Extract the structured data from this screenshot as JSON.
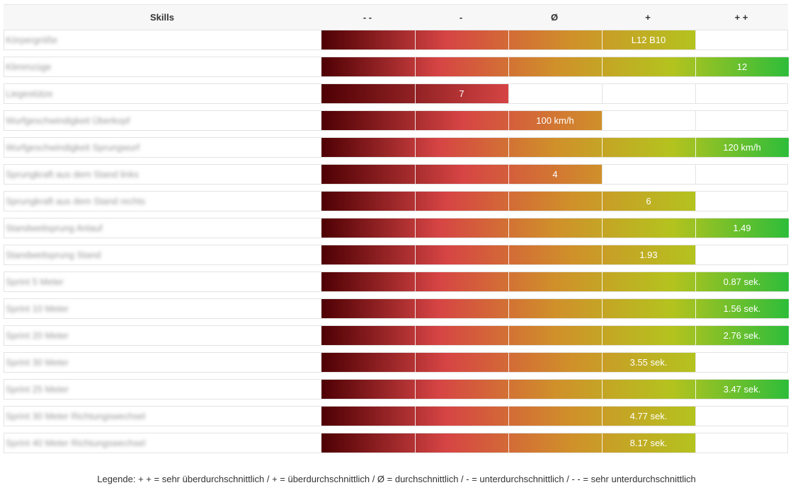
{
  "chart_data": {
    "type": "table",
    "header": {
      "skills": "Skills",
      "levels": [
        "- -",
        "-",
        "Ø",
        "+",
        "+ +"
      ]
    },
    "colors": {
      "level_1": "#4e0004",
      "level_2": "#d64444",
      "level_3": "#d0902a",
      "level_4": "#b4c31e",
      "level_5": "#2ebd3a"
    },
    "rows": [
      {
        "label": "Körpergröße",
        "level": 4,
        "value": "L12 B10"
      },
      {
        "label": "Klimmzüge",
        "level": 5,
        "value": "12"
      },
      {
        "label": "Liegestütze",
        "level": 2,
        "value": "7"
      },
      {
        "label": "Wurfgeschwindigkeit Überkopf",
        "level": 3,
        "value": "100 km/h"
      },
      {
        "label": "Wurfgeschwindigkeit Sprungwurf",
        "level": 5,
        "value": "120 km/h"
      },
      {
        "label": "Sprungkraft aus dem Stand links",
        "level": 3,
        "value": "4"
      },
      {
        "label": "Sprungkraft aus dem Stand rechts",
        "level": 4,
        "value": "6"
      },
      {
        "label": "Standweitsprung Anlauf",
        "level": 5,
        "value": "1.49"
      },
      {
        "label": "Standweitsprung Stand",
        "level": 4,
        "value": "1.93"
      },
      {
        "label": "Sprint 5 Meter",
        "level": 5,
        "value": "0.87 sek."
      },
      {
        "label": "Sprint 10 Meter",
        "level": 5,
        "value": "1.56 sek."
      },
      {
        "label": "Sprint 20 Meter",
        "level": 5,
        "value": "2.76 sek."
      },
      {
        "label": "Sprint 30 Meter",
        "level": 4,
        "value": "3.55 sek."
      },
      {
        "label": "Sprint 25 Meter",
        "level": 5,
        "value": "3.47 sek."
      },
      {
        "label": "Sprint 30 Meter Richtungswechsel",
        "level": 4,
        "value": "4.77 sek."
      },
      {
        "label": "Sprint 40 Meter Richtungswechsel",
        "level": 4,
        "value": "8.17 sek."
      }
    ],
    "legend": "Legende: + + = sehr überdurchschnittlich / + = überdurchschnittlich / Ø = durchschnittlich / - = unterdurchschnittlich / - - = sehr unterdurchschnittlich"
  }
}
